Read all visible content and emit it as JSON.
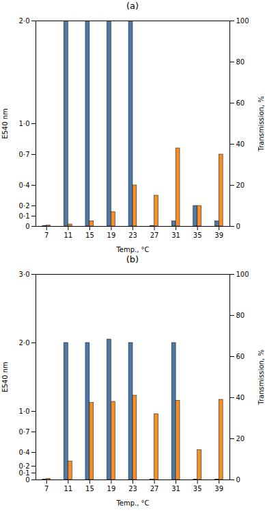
{
  "chart_data": [
    {
      "type": "bar",
      "title": "(a)",
      "x": [
        7,
        11,
        15,
        19,
        23,
        27,
        31,
        35,
        39
      ],
      "xlim": [
        5,
        41
      ],
      "xticks": [
        7,
        11,
        15,
        19,
        23,
        27,
        31,
        35,
        39
      ],
      "xlabel": "Temp., °C",
      "ylabel": "E540 nm",
      "ylim": [
        0,
        2.0
      ],
      "yticks": [
        0,
        {
          "value": 0.1,
          "label": "0·1"
        },
        {
          "value": 0.2,
          "label": "0·2"
        },
        {
          "value": 0.4,
          "label": "0·4"
        },
        {
          "value": 0.7,
          "label": "0·7"
        },
        {
          "value": 1.0,
          "label": "1·0"
        },
        {
          "value": 2.0,
          "label": "2·0"
        }
      ],
      "y2label": "Transmission, %",
      "y2lim": [
        0,
        100
      ],
      "y2ticks": [
        0,
        20,
        40,
        60,
        80,
        100
      ],
      "series": [
        {
          "values": [
            0.005,
            2.0,
            2.0,
            2.0,
            2.0,
            0.005,
            0.05,
            0.2,
            0.05
          ]
        },
        {
          "axis": "y2",
          "values": [
            0.5,
            1.0,
            2.5,
            7.0,
            20.0,
            15.0,
            38.0,
            10.0,
            35.0
          ]
        }
      ]
    },
    {
      "type": "bar",
      "title": "(b)",
      "x": [
        7,
        11,
        15,
        19,
        23,
        27,
        31,
        35,
        39
      ],
      "xlim": [
        5,
        41
      ],
      "xticks": [
        7,
        11,
        15,
        19,
        23,
        27,
        31,
        35,
        39
      ],
      "xlabel": "Temp., °C",
      "ylabel": "E540 nm",
      "ylim": [
        0,
        3.0
      ],
      "yticks": [
        0,
        {
          "value": 0.1,
          "label": "0·1"
        },
        {
          "value": 0.2,
          "label": "0·2"
        },
        {
          "value": 0.4,
          "label": "0·4"
        },
        {
          "value": 0.7,
          "label": "0·7"
        },
        {
          "value": 1.0,
          "label": "1·0"
        },
        {
          "value": 2.0,
          "label": "2·0"
        },
        {
          "value": 3.0,
          "label": "3·0"
        }
      ],
      "y2label": "Transmission, %",
      "y2lim": [
        0,
        100
      ],
      "y2ticks": [
        0,
        20,
        40,
        60,
        80,
        100
      ],
      "series": [
        {
          "values": [
            0.005,
            2.0,
            2.0,
            2.05,
            2.0,
            0.005,
            2.0,
            0.005,
            0.005
          ]
        },
        {
          "axis": "y2",
          "values": [
            0.5,
            9.0,
            37.5,
            38.0,
            41.0,
            32.0,
            38.5,
            14.5,
            39.0
          ]
        }
      ]
    }
  ]
}
